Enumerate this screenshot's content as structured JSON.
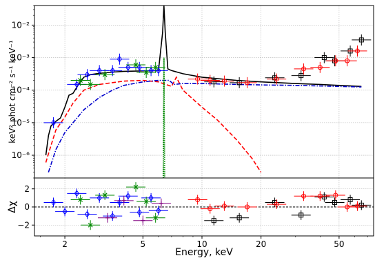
{
  "chart_data": [
    {
      "type": "line",
      "panel": "spectrum",
      "xlabel": "Energy, keV",
      "ylabel": "keV² phot cm⁻² s⁻¹ keV⁻¹",
      "x_scale": "log",
      "y_scale": "log",
      "xlim": [
        1.4,
        75
      ],
      "ylim": [
        2e-07,
        0.04
      ],
      "y_ticks": [
        {
          "value": 1e-06,
          "label": "10⁻⁶"
        },
        {
          "value": 1e-05,
          "label": "10⁻⁵"
        },
        {
          "value": 0.0001,
          "label": "10⁻⁴"
        },
        {
          "value": 0.001,
          "label": "10⁻³"
        },
        {
          "value": 0.01,
          "label": "10⁻²"
        }
      ],
      "grid": true,
      "model_curves": [
        {
          "style": "solid",
          "color": "#000000",
          "x": [
            1.6,
            1.65,
            1.7,
            1.8,
            1.9,
            2.0,
            2.1,
            2.2,
            2.35,
            2.5,
            2.7,
            3.0,
            3.5,
            4.0,
            5.0,
            6.0,
            6.3,
            6.4,
            6.5,
            6.7,
            7.0,
            8.0,
            10,
            15,
            20,
            30,
            40,
            50,
            65
          ],
          "y": [
            1e-06,
            4e-06,
            8e-06,
            1.1e-05,
            1.4e-05,
            3e-05,
            7e-05,
            8e-05,
            0.00015,
            0.00025,
            0.0003,
            0.00033,
            0.00036,
            0.00038,
            0.00039,
            0.0004,
            0.006,
            0.04,
            0.006,
            0.00045,
            0.0004,
            0.00032,
            0.00025,
            0.0002,
            0.00018,
            0.00016,
            0.00015,
            0.00014,
            0.00013
          ]
        },
        {
          "style": "dashed",
          "color": "#ff0000",
          "x": [
            1.6,
            1.7,
            1.8,
            2.0,
            2.2,
            2.5,
            3.0,
            3.5,
            4.0,
            5.0,
            6.0,
            7.0,
            7.4,
            8.0,
            10,
            12,
            15,
            18,
            20
          ],
          "y": [
            6e-07,
            2e-06,
            6e-06,
            1.5e-05,
            4e-05,
            0.0001,
            0.00015,
            0.00017,
            0.00019,
            0.0002,
            0.00018,
            0.00013,
            0.00025,
            0.0001,
            3e-05,
            1.2e-05,
            3e-06,
            8e-07,
            3e-07
          ]
        },
        {
          "style": "dashdot",
          "color": "#0000cc",
          "x": [
            1.65,
            1.8,
            2.0,
            2.2,
            2.5,
            3.0,
            3.5,
            4.0,
            5.0,
            6.0,
            6.8,
            7.2,
            8.0,
            10,
            15,
            20,
            30,
            50,
            65
          ],
          "y": [
            3e-07,
            1.5e-06,
            5e-06,
            1e-05,
            2.5e-05,
            6e-05,
            0.0001,
            0.00014,
            0.00018,
            0.0002,
            0.0002,
            0.00015,
            0.00016,
            0.00016,
            0.00015,
            0.000145,
            0.00014,
            0.00013,
            0.000125
          ]
        },
        {
          "style": "dotted",
          "color": "#008800",
          "x": [
            6.35,
            6.38,
            6.4,
            6.42,
            6.45
          ],
          "y": [
            2e-07,
            2e-05,
            0.001,
            2e-05,
            2e-07
          ]
        }
      ],
      "series": [
        {
          "color": "#000000",
          "marker": "square",
          "x": [
            11.5,
            15.5,
            23.5,
            32,
            42,
            47.5,
            57,
            65
          ],
          "y": [
            0.00018,
            0.00017,
            0.00024,
            0.00028,
            0.001,
            0.0008,
            0.0016,
            0.0035
          ]
        },
        {
          "color": "#ff0000",
          "marker": "circle",
          "x": [
            9.5,
            11,
            13,
            17,
            24,
            33,
            40,
            48,
            55,
            62
          ],
          "y": [
            0.00022,
            0.0002,
            0.00019,
            0.00017,
            0.00022,
            0.00045,
            0.0005,
            0.0008,
            0.0008,
            0.0016
          ]
        },
        {
          "color": "#0000ff",
          "marker": "diamond",
          "x": [
            1.75,
            2.3,
            2.6,
            3.0,
            3.5,
            3.8,
            4.2,
            4.8,
            5.5,
            6.0
          ],
          "y": [
            1e-05,
            0.00015,
            0.0003,
            0.0004,
            0.0004,
            0.0009,
            0.0005,
            0.0005,
            0.0004,
            0.0004
          ]
        },
        {
          "color": "#008800",
          "marker": "cross",
          "x": [
            2.4,
            2.7,
            3.2,
            4.6,
            5.2,
            5.8
          ],
          "y": [
            0.0002,
            0.00015,
            0.0003,
            0.0006,
            0.00035,
            0.0005
          ]
        }
      ]
    },
    {
      "type": "scatter",
      "panel": "residuals",
      "xlabel": "Energy, keV",
      "ylabel": "Δχ",
      "x_scale": "log",
      "xlim": [
        1.4,
        75
      ],
      "ylim": [
        -3.2,
        3.2
      ],
      "y_ticks": [
        -2,
        0,
        2
      ],
      "x_ticks": [
        2,
        5,
        10,
        20,
        50
      ],
      "zero_line": true,
      "grid": true,
      "series": [
        {
          "color": "#000000",
          "marker": "square",
          "x": [
            11.5,
            15.5,
            23.5,
            32,
            42,
            47.5,
            57,
            65
          ],
          "y": [
            -1.5,
            -1.2,
            0.5,
            -0.9,
            1.1,
            0.5,
            0.8,
            0.2
          ]
        },
        {
          "color": "#ff0000",
          "marker": "circle",
          "x": [
            9.5,
            11,
            13,
            17,
            24,
            33,
            40,
            48,
            55,
            62
          ],
          "y": [
            0.8,
            -0.2,
            0.1,
            0,
            0.3,
            1.2,
            1.2,
            1.3,
            0,
            0.1
          ]
        },
        {
          "color": "#0000ff",
          "marker": "diamond",
          "x": [
            1.75,
            2.0,
            2.3,
            2.6,
            3.0,
            3.5,
            3.8,
            4.2,
            4.8,
            5.5,
            6.0
          ],
          "y": [
            0.5,
            -0.5,
            1.5,
            -0.8,
            1.0,
            -1.0,
            0.5,
            1.2,
            -0.6,
            1.0,
            -0.4
          ]
        },
        {
          "color": "#008800",
          "marker": "cross",
          "x": [
            2.4,
            2.7,
            3.2,
            4.6,
            5.2,
            5.8
          ],
          "y": [
            0.8,
            -2,
            1.3,
            2.2,
            0.6,
            -1.2
          ]
        },
        {
          "color": "#800080",
          "marker": "plus",
          "x": [
            3.3,
            4.0,
            5.0,
            6.2
          ],
          "y": [
            -1.2,
            0.7,
            -1.5,
            0.4
          ]
        }
      ]
    }
  ]
}
